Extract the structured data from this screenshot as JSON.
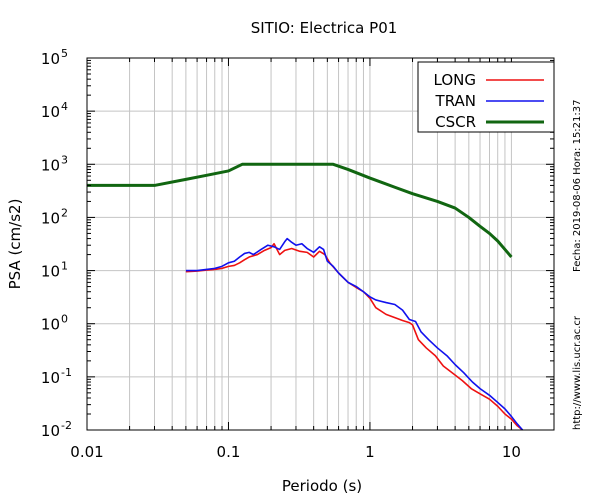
{
  "chart_data": {
    "type": "line",
    "title": "SITIO: Electrica P01",
    "xlabel": "Periodo (s)",
    "ylabel": "PSA (cm/s2)",
    "x_scale": "log",
    "y_scale": "log",
    "xlim": [
      0.01,
      20
    ],
    "ylim": [
      0.01,
      100000
    ],
    "grid": true,
    "legend_position": "top-right",
    "x_ticks": [
      {
        "value": 0.01,
        "label": "0.01"
      },
      {
        "value": 0.1,
        "label": "0.1"
      },
      {
        "value": 1,
        "label": "1"
      },
      {
        "value": 10,
        "label": "10"
      }
    ],
    "y_ticks": [
      {
        "value": 0.01,
        "base": "10",
        "exp": "-2"
      },
      {
        "value": 0.1,
        "base": "10",
        "exp": "-1"
      },
      {
        "value": 1,
        "base": "10",
        "exp": "0"
      },
      {
        "value": 10,
        "base": "10",
        "exp": "1"
      },
      {
        "value": 100,
        "base": "10",
        "exp": "2"
      },
      {
        "value": 1000,
        "base": "10",
        "exp": "3"
      },
      {
        "value": 10000,
        "base": "10",
        "exp": "4"
      },
      {
        "value": 100000,
        "base": "10",
        "exp": "5"
      }
    ],
    "series": [
      {
        "name": "LONG",
        "color": "#ee1111",
        "points": [
          [
            0.05,
            9.5
          ],
          [
            0.06,
            9.8
          ],
          [
            0.07,
            10.2
          ],
          [
            0.08,
            10.5
          ],
          [
            0.09,
            11
          ],
          [
            0.1,
            12
          ],
          [
            0.11,
            12.5
          ],
          [
            0.12,
            14
          ],
          [
            0.13,
            16
          ],
          [
            0.14,
            18
          ],
          [
            0.16,
            20
          ],
          [
            0.18,
            24
          ],
          [
            0.2,
            27
          ],
          [
            0.21,
            32
          ],
          [
            0.23,
            20
          ],
          [
            0.25,
            24
          ],
          [
            0.28,
            26
          ],
          [
            0.32,
            23
          ],
          [
            0.36,
            22
          ],
          [
            0.4,
            18
          ],
          [
            0.44,
            23
          ],
          [
            0.48,
            20
          ],
          [
            0.52,
            14
          ],
          [
            0.6,
            9
          ],
          [
            0.7,
            6
          ],
          [
            0.8,
            4.8
          ],
          [
            0.9,
            4
          ],
          [
            1.0,
            3
          ],
          [
            1.1,
            2
          ],
          [
            1.3,
            1.5
          ],
          [
            1.5,
            1.3
          ],
          [
            1.7,
            1.15
          ],
          [
            1.9,
            1.05
          ],
          [
            2.0,
            0.95
          ],
          [
            2.2,
            0.5
          ],
          [
            2.5,
            0.35
          ],
          [
            2.9,
            0.25
          ],
          [
            3.3,
            0.16
          ],
          [
            3.8,
            0.12
          ],
          [
            4.5,
            0.085
          ],
          [
            5.2,
            0.06
          ],
          [
            6,
            0.048
          ],
          [
            7,
            0.038
          ],
          [
            8,
            0.028
          ],
          [
            9,
            0.02
          ],
          [
            10,
            0.016
          ],
          [
            11,
            0.012
          ],
          [
            12,
            0.01
          ]
        ]
      },
      {
        "name": "TRAN",
        "color": "#1111ee",
        "points": [
          [
            0.05,
            10
          ],
          [
            0.06,
            10
          ],
          [
            0.07,
            10.5
          ],
          [
            0.08,
            11
          ],
          [
            0.09,
            12
          ],
          [
            0.1,
            14
          ],
          [
            0.11,
            15
          ],
          [
            0.12,
            18
          ],
          [
            0.13,
            21
          ],
          [
            0.14,
            22
          ],
          [
            0.15,
            20
          ],
          [
            0.17,
            25
          ],
          [
            0.19,
            30
          ],
          [
            0.21,
            28
          ],
          [
            0.23,
            25
          ],
          [
            0.25,
            35
          ],
          [
            0.26,
            40
          ],
          [
            0.28,
            34
          ],
          [
            0.3,
            30
          ],
          [
            0.33,
            32
          ],
          [
            0.36,
            26
          ],
          [
            0.4,
            22
          ],
          [
            0.44,
            28
          ],
          [
            0.47,
            25
          ],
          [
            0.5,
            15
          ],
          [
            0.55,
            12
          ],
          [
            0.6,
            9
          ],
          [
            0.7,
            6
          ],
          [
            0.8,
            5
          ],
          [
            0.9,
            4
          ],
          [
            1.0,
            3.2
          ],
          [
            1.1,
            2.8
          ],
          [
            1.3,
            2.5
          ],
          [
            1.5,
            2.3
          ],
          [
            1.7,
            1.8
          ],
          [
            1.9,
            1.2
          ],
          [
            2.1,
            1.1
          ],
          [
            2.3,
            0.7
          ],
          [
            2.6,
            0.5
          ],
          [
            3,
            0.35
          ],
          [
            3.5,
            0.25
          ],
          [
            4,
            0.17
          ],
          [
            4.6,
            0.12
          ],
          [
            5.3,
            0.08
          ],
          [
            6,
            0.06
          ],
          [
            7,
            0.045
          ],
          [
            8,
            0.033
          ],
          [
            9,
            0.025
          ],
          [
            10,
            0.018
          ],
          [
            11,
            0.013
          ],
          [
            12,
            0.01
          ]
        ]
      },
      {
        "name": "CSCR",
        "color": "#116611",
        "points": [
          [
            0.01,
            400
          ],
          [
            0.03,
            400
          ],
          [
            0.05,
            520
          ],
          [
            0.07,
            620
          ],
          [
            0.1,
            750
          ],
          [
            0.125,
            1000
          ],
          [
            0.55,
            1000
          ],
          [
            0.7,
            800
          ],
          [
            1,
            550
          ],
          [
            1.5,
            370
          ],
          [
            2,
            280
          ],
          [
            3,
            200
          ],
          [
            4,
            150
          ],
          [
            5,
            100
          ],
          [
            6,
            68
          ],
          [
            7,
            50
          ],
          [
            8,
            36
          ],
          [
            9,
            25
          ],
          [
            10,
            18
          ]
        ]
      }
    ]
  },
  "side_annotations": {
    "date_time": "Fecha: 2019-08-06  Hora: 15:21:37",
    "url": "http://www.lis.ucr.ac.cr"
  }
}
